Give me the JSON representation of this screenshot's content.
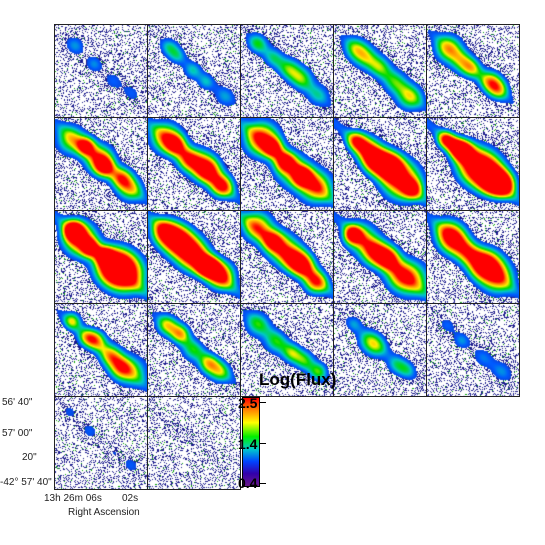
{
  "axes": {
    "dec_ticks": [
      "56' 40\"",
      "57' 00\"",
      "20\"",
      "-42° 57' 40\""
    ],
    "ra_ticks": [
      "13h 26m 06s",
      "02s"
    ],
    "xlabel": "Right Ascension"
  },
  "colorbar": {
    "title": "Log(Flux)",
    "ticks": [
      "2.5",
      "1.4",
      "0.4"
    ]
  },
  "colors": {
    "background": "#ffffff",
    "noise": "#1a1a8c",
    "frame": "#222222"
  },
  "panels": {
    "count": 22,
    "columns": 5,
    "intensity": [
      0.25,
      0.35,
      0.45,
      0.55,
      0.65,
      0.75,
      0.85,
      0.9,
      1.0,
      1.0,
      1.0,
      1.0,
      0.95,
      0.9,
      0.8,
      0.7,
      0.6,
      0.5,
      0.4,
      0.3,
      0.2,
      0.1
    ]
  }
}
